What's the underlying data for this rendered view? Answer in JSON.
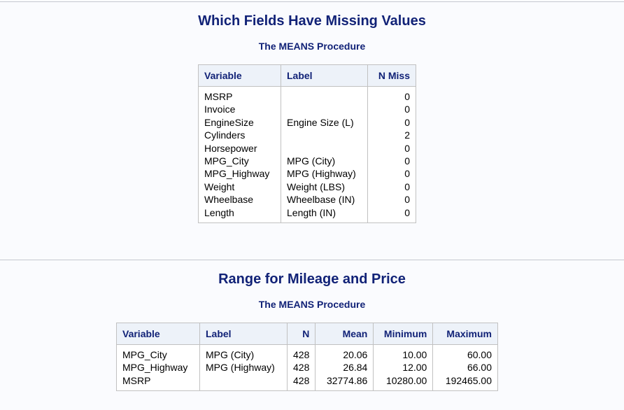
{
  "report1": {
    "title": "Which Fields Have Missing Values",
    "procedure": "The MEANS Procedure",
    "headers": {
      "variable": "Variable",
      "label": "Label",
      "nmiss": "N Miss"
    },
    "rows": [
      {
        "variable": "MSRP",
        "label": "",
        "nmiss": "0"
      },
      {
        "variable": "Invoice",
        "label": "",
        "nmiss": "0"
      },
      {
        "variable": "EngineSize",
        "label": "Engine Size (L)",
        "nmiss": "0"
      },
      {
        "variable": "Cylinders",
        "label": "",
        "nmiss": "2"
      },
      {
        "variable": "Horsepower",
        "label": "",
        "nmiss": "0"
      },
      {
        "variable": "MPG_City",
        "label": "MPG (City)",
        "nmiss": "0"
      },
      {
        "variable": "MPG_Highway",
        "label": "MPG (Highway)",
        "nmiss": "0"
      },
      {
        "variable": "Weight",
        "label": "Weight (LBS)",
        "nmiss": "0"
      },
      {
        "variable": "Wheelbase",
        "label": "Wheelbase (IN)",
        "nmiss": "0"
      },
      {
        "variable": "Length",
        "label": "Length (IN)",
        "nmiss": "0"
      }
    ]
  },
  "report2": {
    "title": "Range for Mileage and Price",
    "procedure": "The MEANS Procedure",
    "headers": {
      "variable": "Variable",
      "label": "Label",
      "n": "N",
      "mean": "Mean",
      "minimum": "Minimum",
      "maximum": "Maximum"
    },
    "rows": [
      {
        "variable": "MPG_City",
        "label": "MPG (City)",
        "n": "428",
        "mean": "20.06",
        "minimum": "10.00",
        "maximum": "60.00"
      },
      {
        "variable": "MPG_Highway",
        "label": "MPG (Highway)",
        "n": "428",
        "mean": "26.84",
        "minimum": "12.00",
        "maximum": "66.00"
      },
      {
        "variable": "MSRP",
        "label": "",
        "n": "428",
        "mean": "32774.86",
        "minimum": "10280.00",
        "maximum": "192465.00"
      }
    ]
  }
}
